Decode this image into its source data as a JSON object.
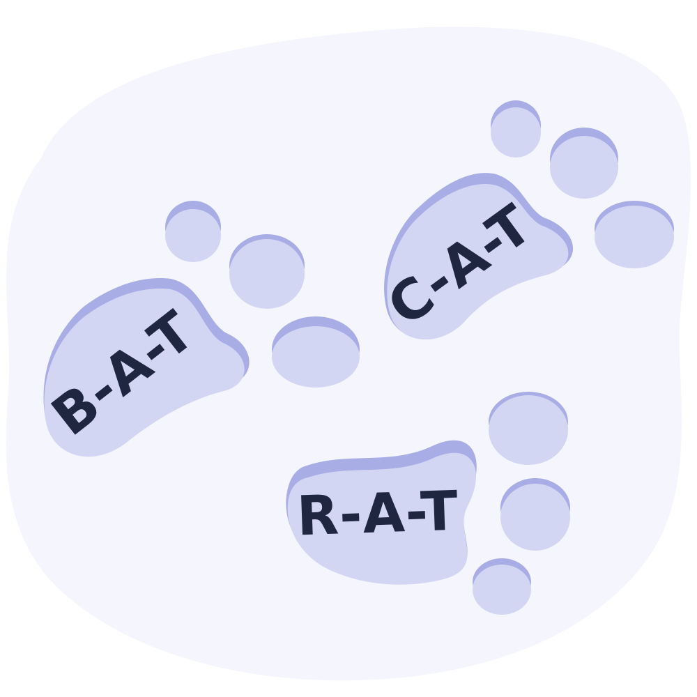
{
  "colors": {
    "background_blob": "#f5f6fd",
    "footprint_shadow": "#a9ade6",
    "footprint_fill": "#d3d6f3",
    "text": "#1e2640"
  },
  "footprints": [
    {
      "id": "bat",
      "word": "B-A-T"
    },
    {
      "id": "cat",
      "word": "C-A-T"
    },
    {
      "id": "rat",
      "word": "R-A-T"
    }
  ]
}
